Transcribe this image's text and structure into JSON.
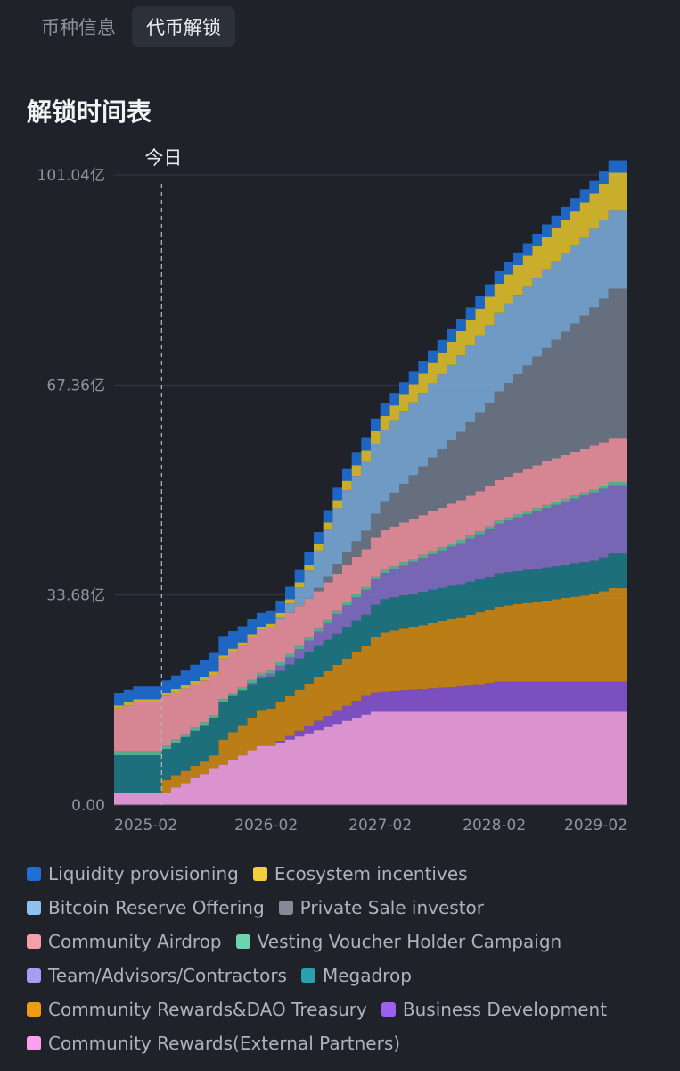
{
  "tabs": [
    {
      "label": "币种信息",
      "active": false
    },
    {
      "label": "代币解锁",
      "active": true
    }
  ],
  "section_title": "解锁时间表",
  "chart_data": {
    "type": "area",
    "stacked": true,
    "title": "",
    "xlabel": "",
    "ylabel": "",
    "today_label": "今日",
    "today_x": "2025-03",
    "ylim": [
      0,
      101.04
    ],
    "y_ticks": [
      {
        "value": 0,
        "label": "0.00"
      },
      {
        "value": 33.68,
        "label": "33.68亿"
      },
      {
        "value": 67.36,
        "label": "67.36亿"
      },
      {
        "value": 101.04,
        "label": "101.04亿"
      }
    ],
    "x_ticks": [
      "2025-02",
      "2026-02",
      "2027-02",
      "2028-02",
      "2029-02"
    ],
    "x": [
      "2024-10",
      "2024-11",
      "2024-12",
      "2025-01",
      "2025-02",
      "2025-03",
      "2025-04",
      "2025-05",
      "2025-06",
      "2025-07",
      "2025-08",
      "2025-09",
      "2025-10",
      "2025-11",
      "2025-12",
      "2026-01",
      "2026-02",
      "2026-03",
      "2026-04",
      "2026-05",
      "2026-06",
      "2026-07",
      "2026-08",
      "2026-09",
      "2026-10",
      "2026-11",
      "2026-12",
      "2027-01",
      "2027-02",
      "2027-03",
      "2027-04",
      "2027-05",
      "2027-06",
      "2027-07",
      "2027-08",
      "2027-09",
      "2027-10",
      "2027-11",
      "2027-12",
      "2028-01",
      "2028-02",
      "2028-03",
      "2028-04",
      "2028-05",
      "2028-06",
      "2028-07",
      "2028-08",
      "2028-09",
      "2028-10",
      "2028-11",
      "2028-12",
      "2029-01",
      "2029-02",
      "2029-03",
      "2029-04"
    ],
    "series": [
      {
        "name": "Community Rewards(External Partners)",
        "color": "#f5a3e6",
        "values": [
          2.0,
          2.0,
          2.0,
          2.0,
          2.0,
          2.0,
          2.8,
          3.5,
          4.3,
          5.0,
          5.8,
          6.5,
          7.3,
          8.0,
          8.8,
          9.5,
          9.5,
          10.0,
          10.5,
          11.0,
          11.5,
          12.0,
          12.5,
          13.0,
          13.5,
          14.0,
          14.5,
          15.0,
          15.0,
          15.0,
          15.0,
          15.0,
          15.0,
          15.0,
          15.0,
          15.0,
          15.0,
          15.0,
          15.0,
          15.0,
          15.0,
          15.0,
          15.0,
          15.0,
          15.0,
          15.0,
          15.0,
          15.0,
          15.0,
          15.0,
          15.0,
          15.0,
          15.0,
          15.0,
          15.0
        ]
      },
      {
        "name": "Business Development",
        "color": "#8a55d6",
        "values": [
          0,
          0,
          0,
          0,
          0,
          0,
          0,
          0,
          0,
          0,
          0,
          0,
          0,
          0,
          0,
          0,
          0,
          0.3,
          0.6,
          0.9,
          1.2,
          1.5,
          1.8,
          2.1,
          2.4,
          2.7,
          3.0,
          3.1,
          3.2,
          3.3,
          3.4,
          3.5,
          3.6,
          3.7,
          3.8,
          3.9,
          4.0,
          4.2,
          4.4,
          4.6,
          4.8,
          4.8,
          4.8,
          4.8,
          4.8,
          4.8,
          4.8,
          4.8,
          4.8,
          4.8,
          4.8,
          4.8,
          4.8,
          4.8,
          4.8
        ]
      },
      {
        "name": "Community Rewards&DAO Treasury",
        "color": "#d18a12",
        "values": [
          0,
          0,
          0,
          0,
          0,
          2.0,
          2.0,
          2.0,
          2.0,
          2.0,
          2.2,
          4.0,
          4.4,
          4.8,
          5.2,
          5.6,
          6.0,
          6.2,
          6.4,
          6.6,
          6.8,
          7.0,
          7.2,
          7.4,
          7.6,
          7.8,
          8.0,
          8.8,
          9.5,
          9.7,
          9.9,
          10.1,
          10.3,
          10.5,
          10.7,
          10.9,
          11.1,
          11.3,
          11.5,
          11.7,
          12.0,
          12.2,
          12.4,
          12.6,
          12.8,
          13.0,
          13.2,
          13.4,
          13.6,
          13.8,
          14.0,
          14.5,
          15.0,
          15.0,
          15.0
        ]
      },
      {
        "name": "Megadrop",
        "color": "#1f7a87",
        "values": [
          6.0,
          6.0,
          6.0,
          6.0,
          6.0,
          5.0,
          5.2,
          5.4,
          5.6,
          5.8,
          5.9,
          6.0,
          5.8,
          5.6,
          5.4,
          5.2,
          5.0,
          5.0,
          5.0,
          5.0,
          5.0,
          5.0,
          5.0,
          5.0,
          5.0,
          5.0,
          5.0,
          5.2,
          5.3,
          5.3,
          5.3,
          5.3,
          5.3,
          5.3,
          5.3,
          5.3,
          5.3,
          5.3,
          5.3,
          5.3,
          5.3,
          5.3,
          5.3,
          5.3,
          5.3,
          5.3,
          5.3,
          5.3,
          5.3,
          5.3,
          5.3,
          5.4,
          5.5,
          5.5,
          5.5
        ]
      },
      {
        "name": "Team/Advisors/Contractors",
        "color": "#8370c7",
        "values": [
          0,
          0,
          0,
          0,
          0,
          0,
          0,
          0,
          0,
          0,
          0,
          0,
          0,
          0,
          0.2,
          0.4,
          0.6,
          0.9,
          1.2,
          1.5,
          1.9,
          2.3,
          2.7,
          3.1,
          3.5,
          3.8,
          4.0,
          4.1,
          4.2,
          4.5,
          4.8,
          5.1,
          5.4,
          5.7,
          6.0,
          6.3,
          6.6,
          6.9,
          7.2,
          7.6,
          8.0,
          8.3,
          8.6,
          8.9,
          9.2,
          9.5,
          9.8,
          10.1,
          10.4,
          10.7,
          11.0,
          11.0,
          11.0,
          11.0,
          11.0
        ]
      },
      {
        "name": "Vesting Voucher Holder Campaign",
        "color": "#5bbf99",
        "values": [
          0.5,
          0.5,
          0.5,
          0.5,
          0.5,
          0.5,
          0.5,
          0.5,
          0.5,
          0.5,
          0.5,
          0.5,
          0.5,
          0.5,
          0.5,
          0.5,
          0.5,
          0.5,
          0.5,
          0.5,
          0.5,
          0.5,
          0.5,
          0.5,
          0.5,
          0.5,
          0.5,
          0.5,
          0.5,
          0.5,
          0.5,
          0.5,
          0.5,
          0.5,
          0.5,
          0.5,
          0.5,
          0.5,
          0.5,
          0.5,
          0.5,
          0.5,
          0.5,
          0.5,
          0.5,
          0.5,
          0.5,
          0.5,
          0.5,
          0.5,
          0.5,
          0.5,
          0.5,
          0.5,
          0.5
        ]
      },
      {
        "name": "Community Airdrop",
        "color": "#f094a0",
        "values": [
          7.0,
          7.5,
          8.0,
          8.0,
          8.0,
          8.0,
          7.6,
          7.3,
          7.0,
          6.7,
          6.5,
          6.5,
          6.6,
          6.7,
          6.8,
          6.9,
          7.0,
          6.8,
          6.6,
          6.4,
          6.2,
          6.0,
          6.0,
          6.0,
          6.0,
          6.0,
          6.0,
          6.2,
          6.4,
          6.4,
          6.4,
          6.4,
          6.4,
          6.4,
          6.4,
          6.4,
          6.4,
          6.4,
          6.4,
          6.4,
          6.5,
          6.6,
          6.7,
          6.8,
          6.9,
          7.0,
          7.0,
          7.0,
          7.0,
          7.0,
          7.0,
          7.0,
          7.0,
          7.0,
          7.0
        ]
      },
      {
        "name": "Private Sale investor",
        "color": "#707a8a",
        "values": [
          0,
          0,
          0,
          0,
          0,
          0,
          0,
          0,
          0,
          0,
          0,
          0,
          0,
          0,
          0,
          0,
          0,
          0,
          0,
          0,
          0,
          0.5,
          1.0,
          1.5,
          2.0,
          2.5,
          3.0,
          3.8,
          4.6,
          5.4,
          6.2,
          7.0,
          7.8,
          8.6,
          9.4,
          10.2,
          11.0,
          11.8,
          12.6,
          13.4,
          14.2,
          15.0,
          15.8,
          16.6,
          17.4,
          18.2,
          19.0,
          19.8,
          20.6,
          21.4,
          22.2,
          23.0,
          24.0,
          24.0,
          24.0
        ]
      },
      {
        "name": "Bitcoin Reserve Offering",
        "color": "#7aabd9",
        "values": [
          0,
          0,
          0,
          0,
          0,
          0,
          0,
          0,
          0,
          0,
          0,
          0,
          0,
          0,
          0,
          0,
          0,
          0.5,
          1.5,
          3.0,
          4.5,
          6.0,
          7.5,
          9.0,
          10.0,
          10.5,
          11.0,
          11.2,
          11.4,
          11.5,
          11.6,
          11.7,
          11.8,
          11.9,
          12.0,
          12.1,
          12.2,
          12.3,
          12.4,
          12.5,
          12.6,
          12.6,
          12.6,
          12.6,
          12.6,
          12.6,
          12.6,
          12.6,
          12.6,
          12.6,
          12.6,
          12.6,
          12.6,
          12.6,
          12.6
        ]
      },
      {
        "name": "Ecosystem incentives",
        "color": "#e0c12a",
        "values": [
          0.5,
          0.5,
          0.5,
          0.5,
          0.5,
          0.5,
          0.5,
          0.5,
          0.5,
          0.5,
          0.5,
          0.5,
          0.5,
          0.5,
          0.5,
          0.5,
          0.5,
          0.6,
          0.7,
          0.8,
          0.9,
          1.0,
          1.1,
          1.3,
          1.5,
          1.7,
          1.9,
          2.1,
          2.3,
          2.5,
          2.7,
          2.9,
          3.1,
          3.3,
          3.5,
          3.7,
          3.9,
          4.1,
          4.3,
          4.5,
          4.7,
          4.8,
          4.9,
          5.0,
          5.1,
          5.2,
          5.3,
          5.4,
          5.5,
          5.6,
          5.7,
          5.8,
          6.0,
          6.0,
          6.0
        ]
      },
      {
        "name": "Liquidity provisioning",
        "color": "#1f6fd9",
        "values": [
          2.0,
          2.0,
          2.0,
          2.0,
          2.0,
          2.0,
          2.2,
          2.4,
          2.6,
          2.8,
          3.0,
          3.0,
          2.8,
          2.6,
          2.4,
          2.2,
          2.0,
          2.0,
          2.0,
          2.0,
          2.0,
          2.0,
          2.0,
          2.0,
          2.0,
          2.0,
          2.0,
          2.0,
          2.0,
          2.0,
          2.0,
          2.0,
          2.0,
          2.0,
          2.0,
          2.0,
          2.0,
          2.0,
          2.0,
          2.0,
          2.0,
          2.0,
          2.0,
          2.0,
          2.0,
          2.0,
          2.0,
          2.0,
          2.0,
          2.0,
          2.0,
          2.0,
          2.0,
          2.0,
          2.0
        ]
      }
    ]
  },
  "legend": [
    {
      "label": "Liquidity provisioning",
      "color": "#1f6fd9"
    },
    {
      "label": "Ecosystem incentives",
      "color": "#f2d03b"
    },
    {
      "label": "Bitcoin Reserve Offering",
      "color": "#8ec3f0"
    },
    {
      "label": "Private Sale investor",
      "color": "#858b96"
    },
    {
      "label": "Community Airdrop",
      "color": "#f5a0a8"
    },
    {
      "label": "Vesting Voucher Holder Campaign",
      "color": "#6fd3ad"
    },
    {
      "label": "Team/Advisors/Contractors",
      "color": "#a99cf2"
    },
    {
      "label": "Megadrop",
      "color": "#2aa0b0"
    },
    {
      "label": "Community Rewards&DAO Treasury",
      "color": "#f09b15"
    },
    {
      "label": "Business Development",
      "color": "#9c5ff0"
    },
    {
      "label": "Community Rewards(External Partners)",
      "color": "#ff9ff0"
    }
  ]
}
